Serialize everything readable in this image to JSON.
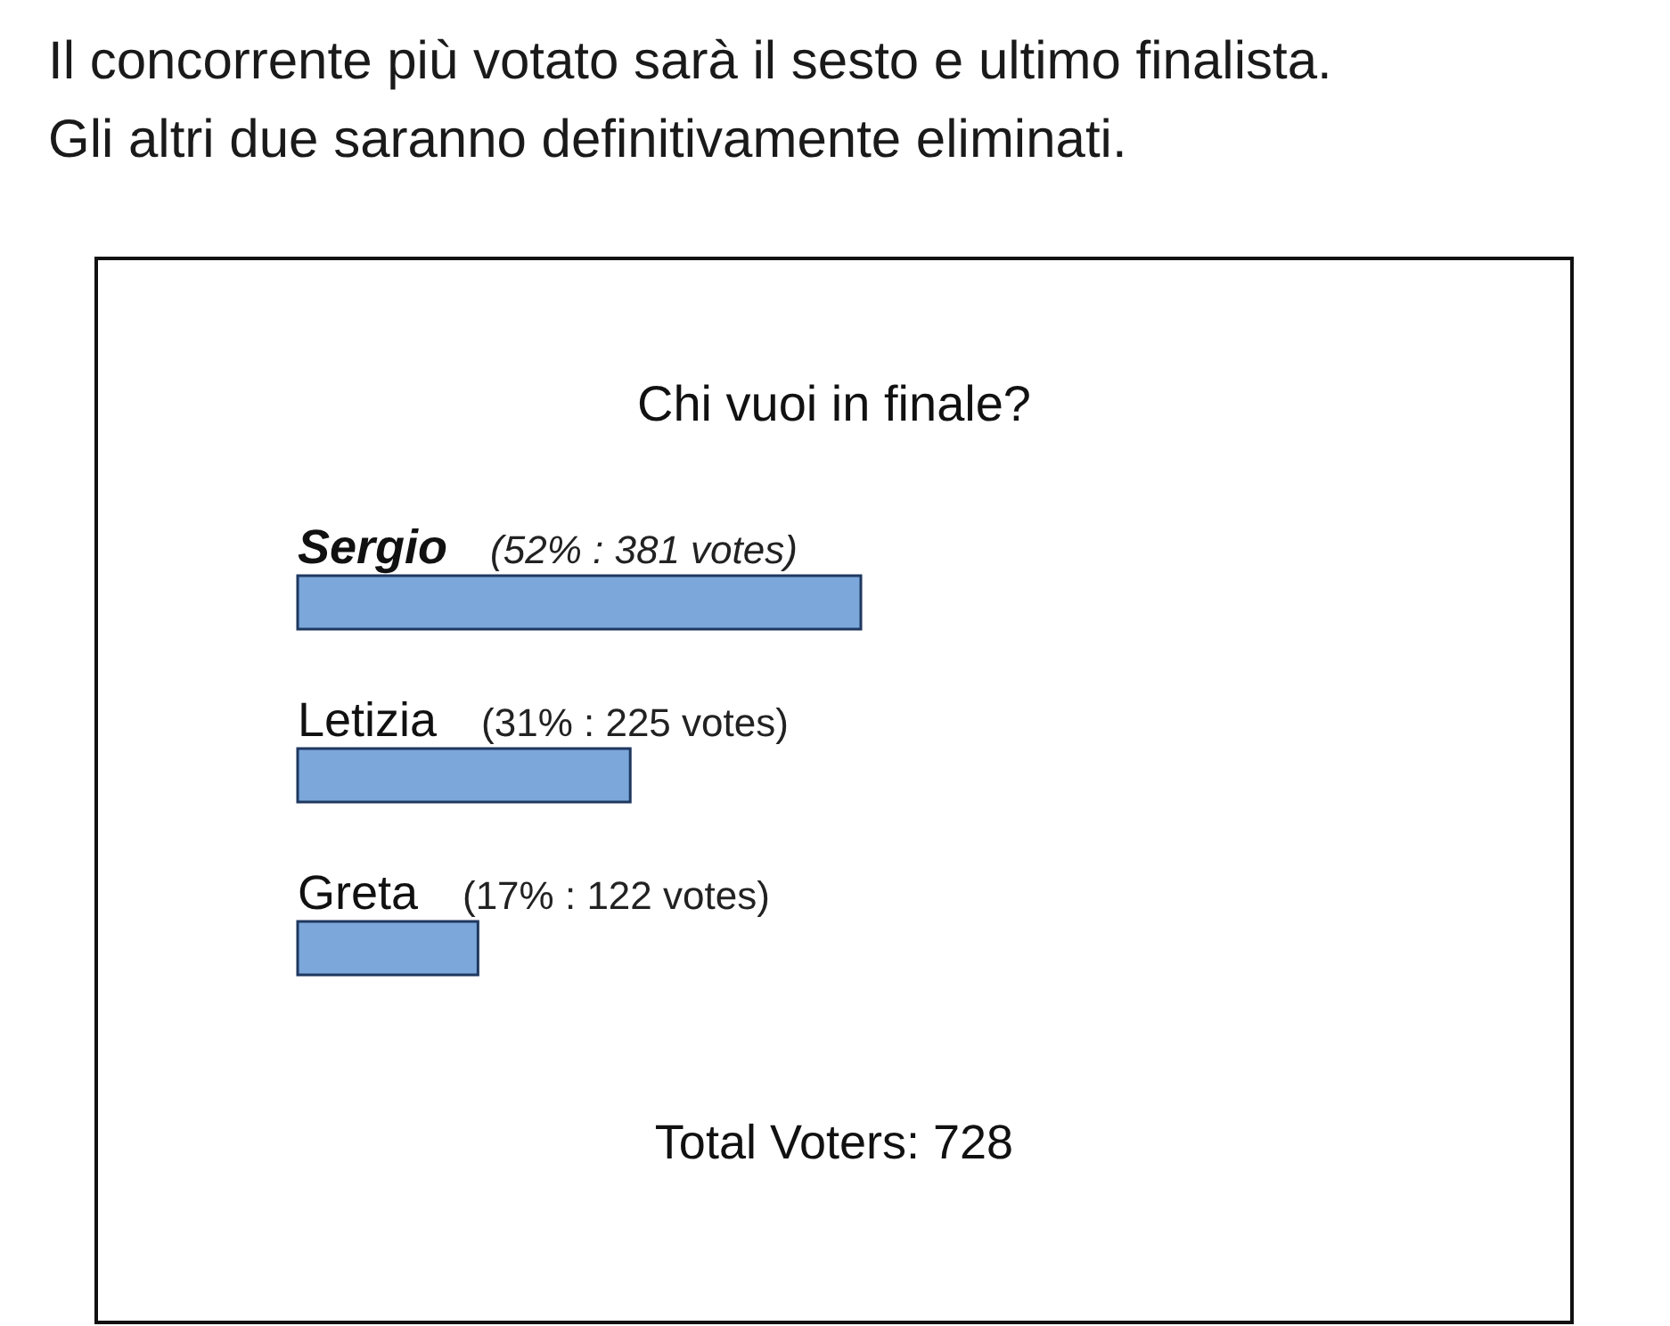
{
  "chart_data": {
    "type": "bar",
    "orientation": "horizontal",
    "title": "Chi vuoi in finale?",
    "categories": [
      "Sergio",
      "Letizia",
      "Greta"
    ],
    "values": [
      381,
      225,
      122
    ],
    "value_labels": [
      "(52% : 381 votes)",
      "(31% : 225 votes)",
      "(17% : 122 votes)"
    ],
    "color": "#7ba7da",
    "annotations": [
      "Il concorrente più votato sarà il sesto e ultimo finalista.",
      "Gli altri due saranno definitivamente eliminati.",
      "Total Voters: 728"
    ]
  }
}
